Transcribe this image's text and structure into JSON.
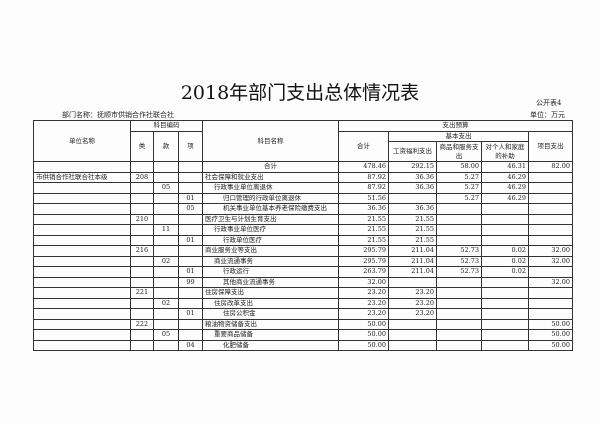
{
  "title": "2018年部门支出总体情况表",
  "form_no": "公开表4",
  "dept": "部门名称：抚顺市供销合作社联合社",
  "unit": "单位：万元",
  "headers": {
    "unit_name": "单位名称",
    "code": "科目编码",
    "lei": "类",
    "kuan": "款",
    "xiang": "项",
    "subject": "科目名称",
    "budget": "支出预算",
    "total": "合计",
    "basic": "基本支出",
    "wages": "工资福利支出",
    "goods": "商品和服务支出",
    "personal": "对个人和家庭的补助",
    "project": "项目支出"
  },
  "total_row": {
    "label": "合计",
    "total": "478.46",
    "wages": "292.15",
    "goods": "58.00",
    "personal": "46.31",
    "project": "82.00"
  },
  "rows": [
    {
      "unit": "市供销合作社联合社本级",
      "lei": "208",
      "kuan": "",
      "xiang": "",
      "name": "社会保障和就业支出",
      "level": 0,
      "total": "87.92",
      "wages": "36.36",
      "goods": "5.27",
      "personal": "46.29",
      "project": ""
    },
    {
      "unit": "",
      "lei": "",
      "kuan": "05",
      "xiang": "",
      "name": "行政事业单位离退休",
      "level": 1,
      "total": "87.92",
      "wages": "36.36",
      "goods": "5.27",
      "personal": "46.29",
      "project": ""
    },
    {
      "unit": "",
      "lei": "",
      "kuan": "",
      "xiang": "01",
      "name": "归口管理的行政单位离退休",
      "level": 2,
      "total": "51.56",
      "wages": "",
      "goods": "5.27",
      "personal": "46.29",
      "project": ""
    },
    {
      "unit": "",
      "lei": "",
      "kuan": "",
      "xiang": "05",
      "name": "机关事业单位基本养老保险缴费支出",
      "level": 2,
      "total": "36.36",
      "wages": "36.36",
      "goods": "",
      "personal": "",
      "project": ""
    },
    {
      "unit": "",
      "lei": "210",
      "kuan": "",
      "xiang": "",
      "name": "医疗卫生与计划生育支出",
      "level": 0,
      "total": "21.55",
      "wages": "21.55",
      "goods": "",
      "personal": "",
      "project": ""
    },
    {
      "unit": "",
      "lei": "",
      "kuan": "11",
      "xiang": "",
      "name": "行政事业单位医疗",
      "level": 1,
      "total": "21.55",
      "wages": "21.55",
      "goods": "",
      "personal": "",
      "project": ""
    },
    {
      "unit": "",
      "lei": "",
      "kuan": "",
      "xiang": "01",
      "name": "行政单位医疗",
      "level": 2,
      "total": "21.55",
      "wages": "21.55",
      "goods": "",
      "personal": "",
      "project": ""
    },
    {
      "unit": "",
      "lei": "216",
      "kuan": "",
      "xiang": "",
      "name": "商业服务业等支出",
      "level": 0,
      "total": "295.79",
      "wages": "211.04",
      "goods": "52.73",
      "personal": "0.02",
      "project": "32.00"
    },
    {
      "unit": "",
      "lei": "",
      "kuan": "02",
      "xiang": "",
      "name": "商业流通事务",
      "level": 1,
      "total": "295.79",
      "wages": "211.04",
      "goods": "52.73",
      "personal": "0.02",
      "project": "32.00"
    },
    {
      "unit": "",
      "lei": "",
      "kuan": "",
      "xiang": "01",
      "name": "行政运行",
      "level": 2,
      "total": "263.79",
      "wages": "211.04",
      "goods": "52.73",
      "personal": "0.02",
      "project": ""
    },
    {
      "unit": "",
      "lei": "",
      "kuan": "",
      "xiang": "99",
      "name": "其他商业流通事务",
      "level": 2,
      "total": "32.00",
      "wages": "",
      "goods": "",
      "personal": "",
      "project": "32.00"
    },
    {
      "unit": "",
      "lei": "221",
      "kuan": "",
      "xiang": "",
      "name": "住房保障支出",
      "level": 0,
      "total": "23.20",
      "wages": "23.20",
      "goods": "",
      "personal": "",
      "project": ""
    },
    {
      "unit": "",
      "lei": "",
      "kuan": "02",
      "xiang": "",
      "name": "住房改革支出",
      "level": 1,
      "total": "23.20",
      "wages": "23.20",
      "goods": "",
      "personal": "",
      "project": ""
    },
    {
      "unit": "",
      "lei": "",
      "kuan": "",
      "xiang": "01",
      "name": "住房公积金",
      "level": 2,
      "total": "23.20",
      "wages": "23.20",
      "goods": "",
      "personal": "",
      "project": ""
    },
    {
      "unit": "",
      "lei": "222",
      "kuan": "",
      "xiang": "",
      "name": "粮油物资储备支出",
      "level": 0,
      "total": "50.00",
      "wages": "",
      "goods": "",
      "personal": "",
      "project": "50.00"
    },
    {
      "unit": "",
      "lei": "",
      "kuan": "05",
      "xiang": "",
      "name": "重要商品储备",
      "level": 1,
      "total": "50.00",
      "wages": "",
      "goods": "",
      "personal": "",
      "project": "50.00"
    },
    {
      "unit": "",
      "lei": "",
      "kuan": "",
      "xiang": "04",
      "name": "化肥储备",
      "level": 2,
      "total": "50.00",
      "wages": "",
      "goods": "",
      "personal": "",
      "project": "50.00"
    }
  ]
}
